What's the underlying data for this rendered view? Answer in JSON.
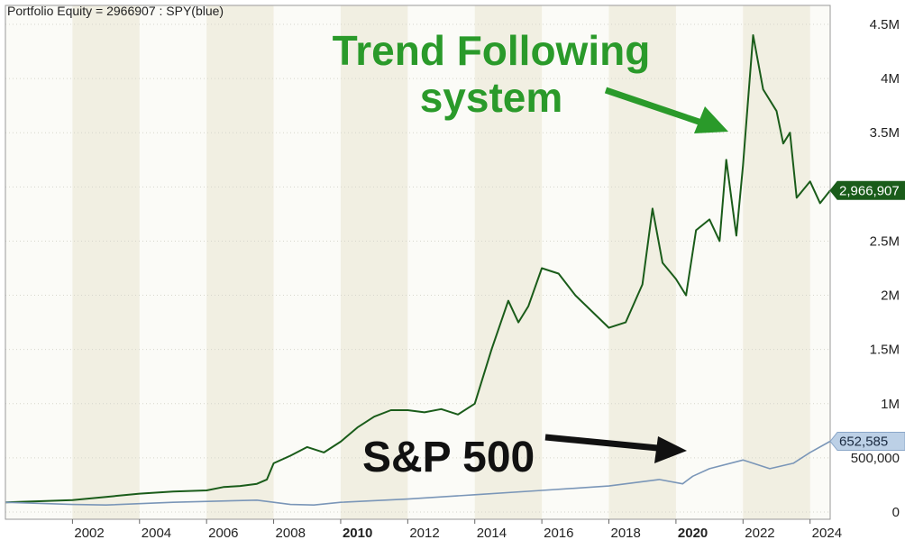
{
  "header": {
    "title": "Portfolio Equity = 2966907 : SPY(blue)"
  },
  "annotations": {
    "trend_line1": "Trend Following",
    "trend_line2": "system",
    "sp": "S&P 500"
  },
  "colors": {
    "equity": "#1a5c1a",
    "spy": "#7a96b8",
    "annot_green": "#2a9a2a",
    "band_dark": "#f1efe2",
    "band_light": "#fbfbf7"
  },
  "chart_data": {
    "type": "line",
    "title": "Portfolio Equity = 2966907 : SPY(blue)",
    "xlabel": "",
    "ylabel": "",
    "xlim": [
      2000.0,
      2024.6
    ],
    "ylim": [
      0,
      4500000
    ],
    "x_ticks": [
      "2002",
      "2004",
      "2006",
      "2008",
      "2010",
      "2012",
      "2014",
      "2016",
      "2018",
      "2020",
      "2022",
      "2024"
    ],
    "x_ticks_bold": [
      "2010",
      "2020"
    ],
    "y_ticks": [
      "0",
      "500,000",
      "1M",
      "1.5M",
      "2M",
      "2.5M",
      "3M",
      "3.5M",
      "4M",
      "4.5M"
    ],
    "y_tick_values": [
      0,
      500000,
      1000000,
      1500000,
      2000000,
      2500000,
      3000000,
      3500000,
      4000000,
      4500000
    ],
    "last_value_labels": [
      {
        "series": "equity",
        "text": "2,966,907",
        "value": 2966907
      },
      {
        "series": "spy",
        "text": "652,585",
        "value": 652585
      }
    ],
    "series": [
      {
        "id": "equity",
        "color": "#1a5c1a",
        "x": [
          2000.0,
          2001.0,
          2002.0,
          2003.0,
          2004.0,
          2005.0,
          2006.0,
          2006.5,
          2007.0,
          2007.5,
          2007.8,
          2008.0,
          2008.5,
          2009.0,
          2009.5,
          2010.0,
          2010.5,
          2011.0,
          2011.5,
          2012.0,
          2012.5,
          2013.0,
          2013.5,
          2014.0,
          2014.5,
          2015.0,
          2015.3,
          2015.6,
          2016.0,
          2016.5,
          2017.0,
          2017.5,
          2018.0,
          2018.5,
          2019.0,
          2019.3,
          2019.6,
          2020.0,
          2020.3,
          2020.6,
          2021.0,
          2021.3,
          2021.5,
          2021.8,
          2022.0,
          2022.3,
          2022.6,
          2023.0,
          2023.2,
          2023.4,
          2023.6,
          2024.0,
          2024.3,
          2024.6
        ],
        "y": [
          90000,
          100000,
          110000,
          140000,
          170000,
          190000,
          200000,
          230000,
          240000,
          260000,
          300000,
          450000,
          520000,
          600000,
          550000,
          650000,
          780000,
          880000,
          940000,
          940000,
          920000,
          950000,
          900000,
          1000000,
          1500000,
          1950000,
          1750000,
          1900000,
          2250000,
          2200000,
          2000000,
          1850000,
          1700000,
          1750000,
          2100000,
          2800000,
          2300000,
          2150000,
          2000000,
          2600000,
          2700000,
          2500000,
          3250000,
          2550000,
          3200000,
          4400000,
          3900000,
          3700000,
          3400000,
          3500000,
          2900000,
          3050000,
          2850000,
          2966907
        ]
      },
      {
        "id": "spy",
        "color": "#7a96b8",
        "x": [
          2000.0,
          2002.0,
          2003.0,
          2005.0,
          2007.5,
          2008.5,
          2009.2,
          2010.0,
          2012.0,
          2014.0,
          2016.0,
          2018.0,
          2019.5,
          2020.2,
          2020.5,
          2021.0,
          2022.0,
          2022.8,
          2023.5,
          2024.0,
          2024.6
        ],
        "y": [
          90000,
          70000,
          65000,
          90000,
          110000,
          70000,
          65000,
          90000,
          120000,
          160000,
          200000,
          240000,
          300000,
          260000,
          330000,
          400000,
          480000,
          400000,
          450000,
          550000,
          652585
        ]
      }
    ]
  }
}
